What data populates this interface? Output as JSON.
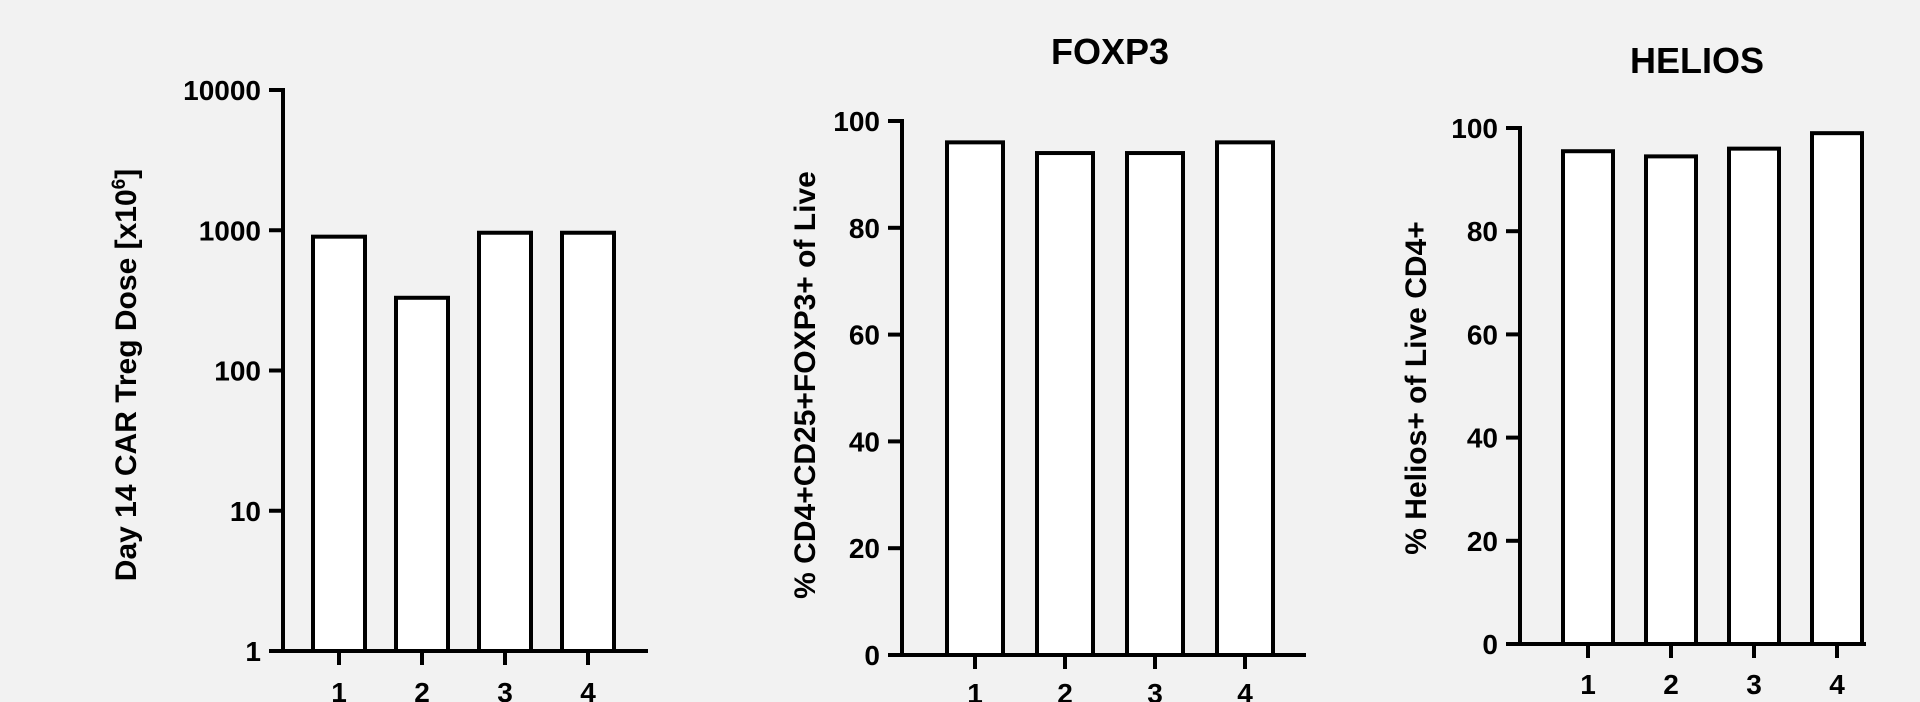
{
  "colors": {
    "background": "#f2f2f2",
    "bar_fill": "#ffffff",
    "bar_stroke": "#000000",
    "axis": "#000000"
  },
  "chart_data": [
    {
      "type": "bar",
      "title": "",
      "xlabel": "",
      "ylabel": "Day 14 CAR Treg Dose [x10",
      "ylabel_superscript": "6",
      "ylabel_suffix": "]",
      "yscale": "log",
      "ylim": [
        1,
        10000
      ],
      "yticks": [
        1,
        10,
        100,
        1000,
        10000
      ],
      "yticklabels": [
        "1",
        "10",
        "100",
        "1000",
        "10000"
      ],
      "categories": [
        "1",
        "2",
        "3",
        "4"
      ],
      "values": [
        900,
        330,
        960,
        960
      ],
      "grid": false
    },
    {
      "type": "bar",
      "title": "FOXP3",
      "xlabel": "",
      "ylabel": "% CD4+CD25+FOXP3+ of Live",
      "yscale": "linear",
      "ylim": [
        0,
        100
      ],
      "yticks": [
        0,
        20,
        40,
        60,
        80,
        100
      ],
      "yticklabels": [
        "0",
        "20",
        "40",
        "60",
        "80",
        "100"
      ],
      "categories": [
        "1",
        "2",
        "3",
        "4"
      ],
      "values": [
        96,
        94,
        94,
        96
      ],
      "grid": false
    },
    {
      "type": "bar",
      "title": "HELIOS",
      "xlabel": "",
      "ylabel": "% Helios+ of Live CD4+",
      "yscale": "linear",
      "ylim": [
        0,
        100
      ],
      "yticks": [
        0,
        20,
        40,
        60,
        80,
        100
      ],
      "yticklabels": [
        "0",
        "20",
        "40",
        "60",
        "80",
        "100"
      ],
      "categories": [
        "1",
        "2",
        "3",
        "4"
      ],
      "values": [
        95.5,
        94.5,
        96,
        99
      ],
      "grid": false
    }
  ]
}
